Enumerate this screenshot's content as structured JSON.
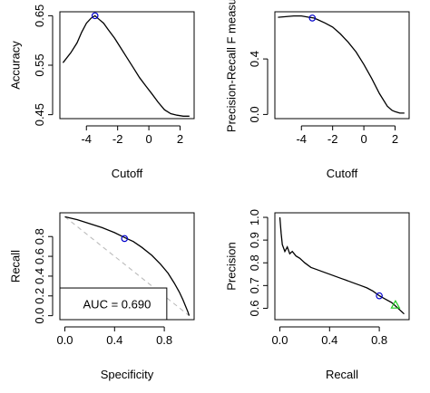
{
  "chart_data": [
    {
      "type": "line",
      "xlabel": "Cutoff",
      "ylabel": "Accuracy",
      "xlim": [
        -5.7,
        2.9
      ],
      "ylim": [
        0.442,
        0.658
      ],
      "xticks": [
        -4,
        -2,
        0,
        2
      ],
      "xtick_labels": [
        "-4",
        "-2",
        "0",
        "2"
      ],
      "yticks": [
        0.45,
        0.55,
        0.65
      ],
      "ytick_labels": [
        "0.45",
        "0.55",
        "0.65"
      ],
      "grid": false,
      "series": [
        {
          "x": [
            -5.5,
            -5.0,
            -4.6,
            -4.3,
            -4.0,
            -3.7,
            -3.45,
            -3.2,
            -2.9,
            -2.6,
            -2.2,
            -1.8,
            -1.4,
            -1.0,
            -0.6,
            -0.2,
            0.2,
            0.6,
            1.0,
            1.4,
            1.8,
            2.2,
            2.6
          ],
          "y": [
            0.555,
            0.575,
            0.595,
            0.617,
            0.635,
            0.645,
            0.65,
            0.643,
            0.635,
            0.622,
            0.605,
            0.585,
            0.565,
            0.545,
            0.525,
            0.508,
            0.492,
            0.475,
            0.46,
            0.452,
            0.449,
            0.447,
            0.447
          ]
        }
      ],
      "marker": {
        "x": -3.45,
        "y": 0.65
      }
    },
    {
      "type": "line",
      "xlabel": "Cutoff",
      "ylabel": "Precision-Recall F measu",
      "xlim": [
        -5.7,
        2.9
      ],
      "ylim": [
        -0.03,
        0.74
      ],
      "xticks": [
        -4,
        -2,
        0,
        2
      ],
      "xtick_labels": [
        "-4",
        "-2",
        "0",
        "2"
      ],
      "yticks": [
        0.0,
        0.4
      ],
      "ytick_labels": [
        "0.0",
        "0.4"
      ],
      "grid": false,
      "series": [
        {
          "x": [
            -5.5,
            -5.0,
            -4.5,
            -4.0,
            -3.5,
            -3.2,
            -3.0,
            -2.5,
            -2.0,
            -1.5,
            -1.0,
            -0.5,
            0.0,
            0.5,
            1.0,
            1.5,
            1.8,
            2.0,
            2.3,
            2.6
          ],
          "y": [
            0.7,
            0.705,
            0.71,
            0.71,
            0.7,
            0.695,
            0.685,
            0.66,
            0.63,
            0.58,
            0.52,
            0.45,
            0.36,
            0.26,
            0.15,
            0.06,
            0.03,
            0.02,
            0.01,
            0.01
          ]
        }
      ],
      "marker": {
        "x": -3.3,
        "y": 0.695
      }
    },
    {
      "type": "line",
      "xlabel": "Specificity",
      "ylabel": "Recall",
      "xlim": [
        -0.04,
        1.04
      ],
      "ylim": [
        -0.04,
        1.04
      ],
      "xticks": [
        0.0,
        0.4,
        0.8
      ],
      "xtick_labels": [
        "0.0",
        "0.4",
        "0.8"
      ],
      "yticks": [
        0.0,
        0.2,
        0.4,
        0.6,
        0.8
      ],
      "ytick_labels": [
        "0.0",
        "0.2",
        "0.4",
        "0.6",
        "0.8"
      ],
      "grid": false,
      "series": [
        {
          "x": [
            0.0,
            0.1,
            0.2,
            0.3,
            0.4,
            0.48,
            0.55,
            0.62,
            0.7,
            0.77,
            0.83,
            0.88,
            0.92,
            0.95,
            0.97,
            0.99,
            1.0
          ],
          "y": [
            1.0,
            0.97,
            0.93,
            0.89,
            0.84,
            0.79,
            0.75,
            0.69,
            0.61,
            0.52,
            0.43,
            0.33,
            0.24,
            0.16,
            0.1,
            0.04,
            0.0
          ]
        }
      ],
      "diagonal": [
        [
          0,
          1
        ],
        [
          1,
          0
        ]
      ],
      "marker": {
        "x": 0.48,
        "y": 0.78
      },
      "annotation": {
        "text": "AUC = 0.690"
      },
      "auc_box": {
        "x0": -0.04,
        "x1": 0.82,
        "y0": -0.04,
        "y1": 0.28
      }
    },
    {
      "type": "line",
      "xlabel": "Recall",
      "ylabel": "Precision",
      "xlim": [
        -0.04,
        1.04
      ],
      "ylim": [
        0.55,
        1.02
      ],
      "xticks": [
        0.0,
        0.4,
        0.8
      ],
      "xtick_labels": [
        "0.0",
        "0.4",
        "0.8"
      ],
      "yticks": [
        0.6,
        0.7,
        0.8,
        0.9,
        1.0
      ],
      "ytick_labels": [
        "0.6",
        "0.7",
        "0.8",
        "0.9",
        "1.0"
      ],
      "grid": false,
      "series": [
        {
          "x": [
            0.0,
            0.01,
            0.02,
            0.04,
            0.06,
            0.08,
            0.1,
            0.13,
            0.16,
            0.2,
            0.25,
            0.3,
            0.35,
            0.4,
            0.45,
            0.5,
            0.55,
            0.6,
            0.65,
            0.7,
            0.75,
            0.8,
            0.85,
            0.9,
            0.95,
            1.0
          ],
          "y": [
            1.0,
            0.93,
            0.88,
            0.85,
            0.87,
            0.84,
            0.85,
            0.83,
            0.82,
            0.8,
            0.78,
            0.77,
            0.76,
            0.75,
            0.74,
            0.73,
            0.72,
            0.71,
            0.7,
            0.69,
            0.675,
            0.655,
            0.64,
            0.625,
            0.6,
            0.575
          ]
        }
      ],
      "marker_blue": {
        "x": 0.8,
        "y": 0.655
      },
      "marker_green": {
        "x": 0.93,
        "y": 0.615
      }
    }
  ],
  "colors": {
    "curve": "#000000",
    "frame": "#000000",
    "marker_blue": "#0000cc",
    "marker_green": "#22cc22",
    "diagonal": "#bbbbbb"
  }
}
